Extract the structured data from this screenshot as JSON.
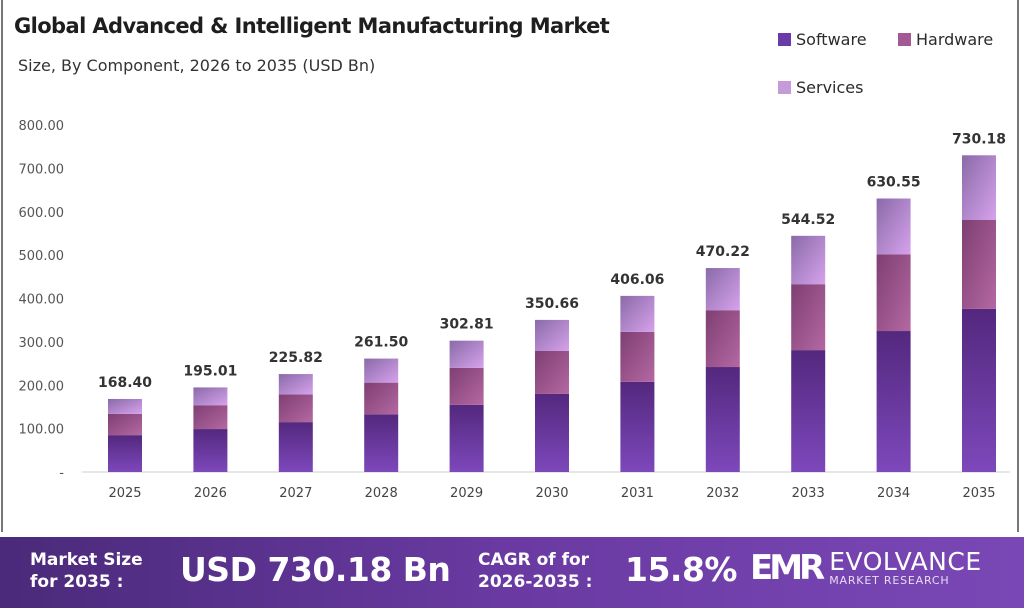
{
  "header": {
    "title": "Global Advanced & Intelligent Manufacturing Market",
    "subtitle": "Size, By Component, 2026 to 2035 (USD Bn)"
  },
  "chart_data": {
    "type": "bar",
    "stacked": true,
    "title": "Global Advanced & Intelligent Manufacturing Market",
    "subtitle": "Size, By Component, 2026 to 2035 (USD Bn)",
    "categories": [
      "2025",
      "2026",
      "2027",
      "2028",
      "2029",
      "2030",
      "2031",
      "2032",
      "2033",
      "2034",
      "2035"
    ],
    "series": [
      {
        "name": "Software",
        "color": "#6a3aa8",
        "values": [
          85,
          99,
          115,
          133,
          155,
          180,
          208,
          242,
          281,
          325,
          376
        ]
      },
      {
        "name": "Hardware",
        "color": "#a35a94",
        "values": [
          49,
          55,
          64,
          73,
          85,
          99,
          115,
          131,
          152,
          177,
          205
        ]
      },
      {
        "name": "Services",
        "color": "#c49ad8",
        "values": [
          34.4,
          41.01,
          46.82,
          55.5,
          62.81,
          71.66,
          83.06,
          97.22,
          111.52,
          128.55,
          149.18
        ]
      }
    ],
    "totals": [
      "168.40",
      "195.01",
      "225.82",
      "261.50",
      "302.81",
      "350.66",
      "406.06",
      "470.22",
      "544.52",
      "630.55",
      "730.18"
    ],
    "yticks": [
      "-",
      "100.00",
      "200.00",
      "300.00",
      "400.00",
      "500.00",
      "600.00",
      "700.00",
      "800.00"
    ],
    "ylim": [
      0,
      800
    ],
    "xlabel": "",
    "ylabel": "",
    "grid": false,
    "legend_position": "top-right"
  },
  "footer": {
    "market_size_label_1": "Market Size",
    "market_size_label_2": "for 2035 :",
    "market_size_value": "USD 730.18 Bn",
    "cagr_label_1": "CAGR of for",
    "cagr_label_2": "2026-2035 :",
    "cagr_value": "15.8%",
    "logo_mark": "EMR",
    "logo_name": "EVOLVANCE",
    "logo_sub": "MARKET RESEARCH"
  }
}
